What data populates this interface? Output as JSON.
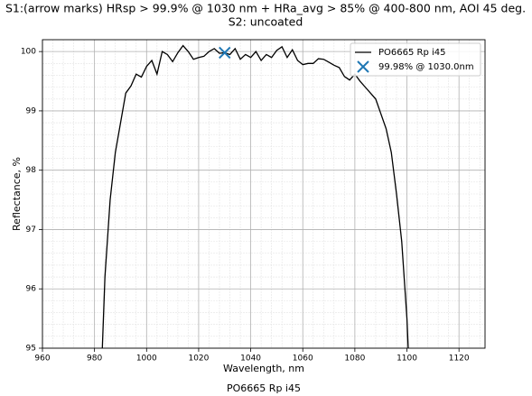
{
  "chart_data": {
    "type": "line",
    "title": "S1:(arrow marks) HRsp > 99.9% @ 1030 nm + HRa_avg > 85% @ 400-800 nm, AOI 45 deg.",
    "subtitle": "S2: uncoated",
    "caption": "PO6665 Rp i45",
    "x_label": "Wavelength, nm",
    "y_label": "Reflectance, %",
    "x": [
      983,
      984,
      986,
      988,
      990,
      992,
      994,
      996,
      998,
      1000,
      1002,
      1004,
      1006,
      1008,
      1010,
      1012,
      1014,
      1016,
      1018,
      1020,
      1022,
      1024,
      1026,
      1028,
      1030,
      1032,
      1034,
      1036,
      1038,
      1040,
      1042,
      1044,
      1046,
      1048,
      1050,
      1052,
      1054,
      1056,
      1058,
      1060,
      1062,
      1064,
      1066,
      1068,
      1070,
      1072,
      1074,
      1076,
      1078,
      1080,
      1082,
      1084,
      1086,
      1088,
      1090,
      1092,
      1094,
      1096,
      1098,
      1100,
      1100.5
    ],
    "series": [
      {
        "name": "PO6665 Rp i45",
        "color": "#000000",
        "values": [
          95,
          96.2,
          97.5,
          98.3,
          98.8,
          99.3,
          99.42,
          99.62,
          99.57,
          99.75,
          99.85,
          99.62,
          100.0,
          99.95,
          99.83,
          99.98,
          100.1,
          100.0,
          99.87,
          99.9,
          99.92,
          100.0,
          100.05,
          99.97,
          99.98,
          99.95,
          100.05,
          99.87,
          99.95,
          99.9,
          100.0,
          99.85,
          99.95,
          99.9,
          100.02,
          100.08,
          99.9,
          100.03,
          99.85,
          99.78,
          99.8,
          99.8,
          99.88,
          99.87,
          99.82,
          99.77,
          99.73,
          99.58,
          99.52,
          99.62,
          99.5,
          99.4,
          99.3,
          99.2,
          98.95,
          98.7,
          98.3,
          97.6,
          96.8,
          95.5,
          95
        ]
      },
      {
        "name": "99.98% @ 1030.0nm",
        "type": "scatter",
        "color": "#1f77b4",
        "x": [
          1030
        ],
        "values": [
          99.98
        ]
      }
    ],
    "xlim": [
      960,
      1130
    ],
    "ylim": [
      95,
      100.2
    ],
    "xticks": [
      960,
      980,
      1000,
      1020,
      1040,
      1060,
      1080,
      1100,
      1120
    ],
    "yticks": [
      95,
      96,
      97,
      98,
      99,
      100
    ],
    "xminorticks": [
      964,
      968,
      972,
      976,
      984,
      988,
      992,
      996,
      1004,
      1008,
      1012,
      1016,
      1024,
      1028,
      1032,
      1036,
      1044,
      1048,
      1052,
      1056,
      1064,
      1068,
      1072,
      1076,
      1084,
      1088,
      1092,
      1096,
      1104,
      1108,
      1112,
      1116,
      1124,
      1128
    ],
    "yminorticks": [
      95.2,
      95.4,
      95.6,
      95.8,
      96.2,
      96.4,
      96.6,
      96.8,
      97.2,
      97.4,
      97.6,
      97.8,
      98.2,
      98.4,
      98.6,
      98.8,
      99.2,
      99.4,
      99.6,
      99.8
    ],
    "grid": true,
    "legend": "upper right"
  }
}
